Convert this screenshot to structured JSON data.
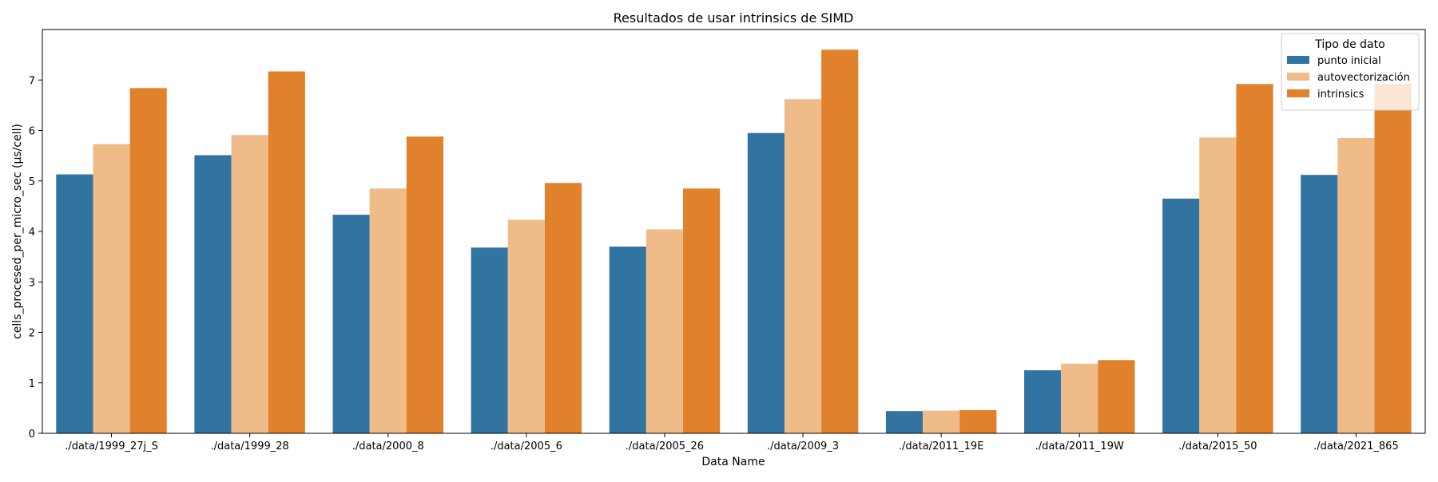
{
  "chart_data": {
    "type": "bar",
    "title": "Resultados de usar intrinsics de SIMD",
    "xlabel": "Data Name",
    "ylabel": "cells_procesed_per_micro_sec (µs/cell)",
    "ylim": [
      0,
      8
    ],
    "yticks": [
      0,
      1,
      2,
      3,
      4,
      5,
      6,
      7
    ],
    "grid": false,
    "legend": {
      "title": "Tipo de dato",
      "placement": "top-right"
    },
    "categories": [
      "./data/1999_27j_S",
      "./data/1999_28",
      "./data/2000_8",
      "./data/2005_6",
      "./data/2005_26",
      "./data/2009_3",
      "./data/2011_19E",
      "./data/2011_19W",
      "./data/2015_50",
      "./data/2021_865"
    ],
    "series": [
      {
        "name": "punto inicial",
        "color": "#3274a1",
        "values": [
          5.13,
          5.51,
          4.33,
          3.68,
          3.7,
          5.95,
          0.44,
          1.25,
          4.65,
          5.12
        ]
      },
      {
        "name": "autovectorización",
        "color": "#efbb89",
        "values": [
          5.73,
          5.91,
          4.85,
          4.23,
          4.04,
          6.62,
          0.45,
          1.38,
          5.86,
          5.85
        ]
      },
      {
        "name": "intrinsics",
        "color": "#e1812c",
        "values": [
          6.84,
          7.17,
          5.88,
          4.96,
          4.85,
          7.6,
          0.46,
          1.45,
          6.92,
          6.92
        ]
      }
    ]
  }
}
